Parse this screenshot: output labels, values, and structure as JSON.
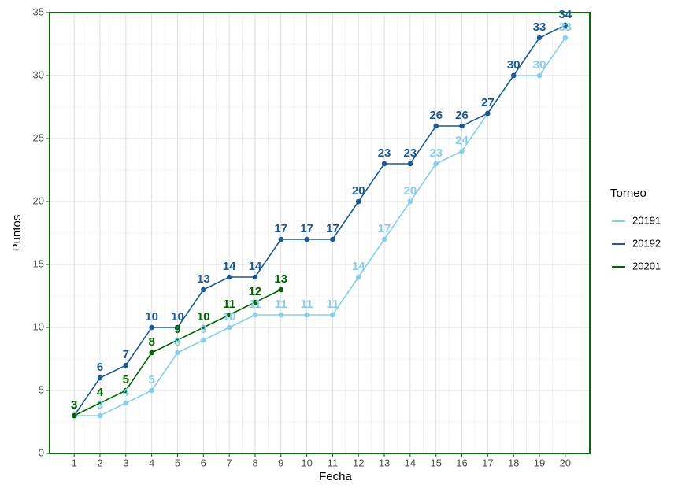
{
  "chart_data": {
    "type": "line",
    "x": [
      1,
      2,
      3,
      4,
      5,
      6,
      7,
      8,
      9,
      10,
      11,
      12,
      13,
      14,
      15,
      16,
      17,
      18,
      19,
      20
    ],
    "x_label": "Fecha",
    "y_label": "Puntos",
    "legend_title": "Torneo",
    "legend_position": "right",
    "series": [
      {
        "name": "20191",
        "color": "#87ceeb",
        "values": [
          3,
          3,
          4,
          5,
          8,
          9,
          10,
          11,
          11,
          11,
          11,
          14,
          17,
          20,
          23,
          24,
          27,
          30,
          30,
          33
        ]
      },
      {
        "name": "20192",
        "color": "#1d5a94",
        "values": [
          3,
          6,
          7,
          10,
          10,
          13,
          14,
          14,
          17,
          17,
          17,
          20,
          23,
          23,
          26,
          26,
          27,
          30,
          33,
          34
        ]
      },
      {
        "name": "20201",
        "color": "#006400",
        "values": [
          3,
          4,
          5,
          8,
          9,
          10,
          11,
          12,
          13,
          null,
          null,
          null,
          null,
          null,
          null,
          null,
          null,
          null,
          null,
          null
        ]
      }
    ],
    "xlim": [
      0.05,
      20.95
    ],
    "xticks": [
      1,
      2,
      3,
      4,
      5,
      6,
      7,
      8,
      9,
      10,
      11,
      12,
      13,
      14,
      15,
      16,
      17,
      18,
      19,
      20
    ],
    "ylim": [
      0,
      35
    ],
    "yticks": [
      0,
      5,
      10,
      15,
      20,
      25,
      30,
      35
    ],
    "grid": true,
    "data_labels": true
  }
}
